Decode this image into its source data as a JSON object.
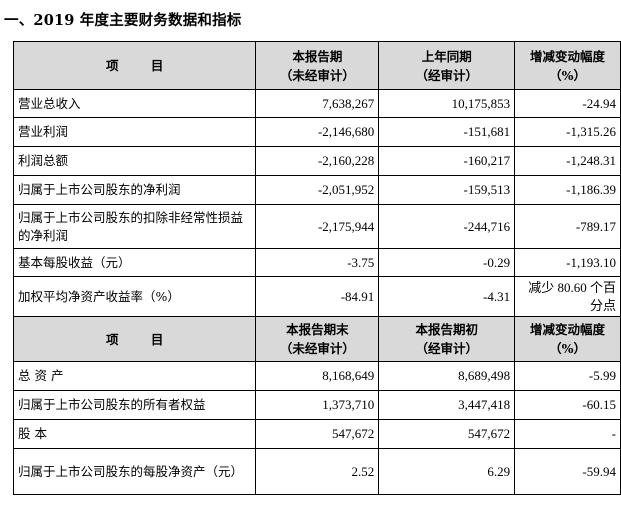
{
  "title": "一、2019 年度主要财务数据和指标",
  "section1": {
    "header": {
      "item": "项  目",
      "col1": "本报告期\n（未经审计）",
      "col2": "上年同期\n（经审计）",
      "col3": "增减变动幅度\n（%）"
    },
    "rows": [
      {
        "label": "营业总收入",
        "v1": "7,638,267",
        "v2": "10,175,853",
        "v3": "-24.94"
      },
      {
        "label": "营业利润",
        "v1": "-2,146,680",
        "v2": "-151,681",
        "v3": "-1,315.26"
      },
      {
        "label": "利润总额",
        "v1": "-2,160,228",
        "v2": "-160,217",
        "v3": "-1,248.31"
      },
      {
        "label": "归属于上市公司股东的净利润",
        "v1": "-2,051,952",
        "v2": "-159,513",
        "v3": "-1,186.39"
      },
      {
        "label": "归属于上市公司股东的扣除非经常性损益的净利润",
        "v1": "-2,175,944",
        "v2": "-244,716",
        "v3": "-789.17"
      },
      {
        "label": "基本每股收益（元）",
        "v1": "-3.75",
        "v2": "-0.29",
        "v3": "-1,193.10"
      },
      {
        "label": "加权平均净资产收益率（%）",
        "v1": "-84.91",
        "v2": "-4.31",
        "v3": "减少 80.60 个百分点"
      }
    ]
  },
  "section2": {
    "header": {
      "item": "项  目",
      "col1": "本报告期末\n（未经审计）",
      "col2": "本报告期初\n（经审计）",
      "col3": "增减变动幅度\n（%）"
    },
    "rows": [
      {
        "label": "总 资 产",
        "v1": "8,168,649",
        "v2": "8,689,498",
        "v3": "-5.99"
      },
      {
        "label": "归属于上市公司股东的所有者权益",
        "v1": "1,373,710",
        "v2": "3,447,418",
        "v3": "-60.15"
      },
      {
        "label": "股    本",
        "v1": "547,672",
        "v2": "547,672",
        "v3": "-"
      },
      {
        "label": "归属于上市公司股东的每股净资产（元）",
        "v1": "2.52",
        "v2": "6.29",
        "v3": "-59.94"
      }
    ]
  }
}
